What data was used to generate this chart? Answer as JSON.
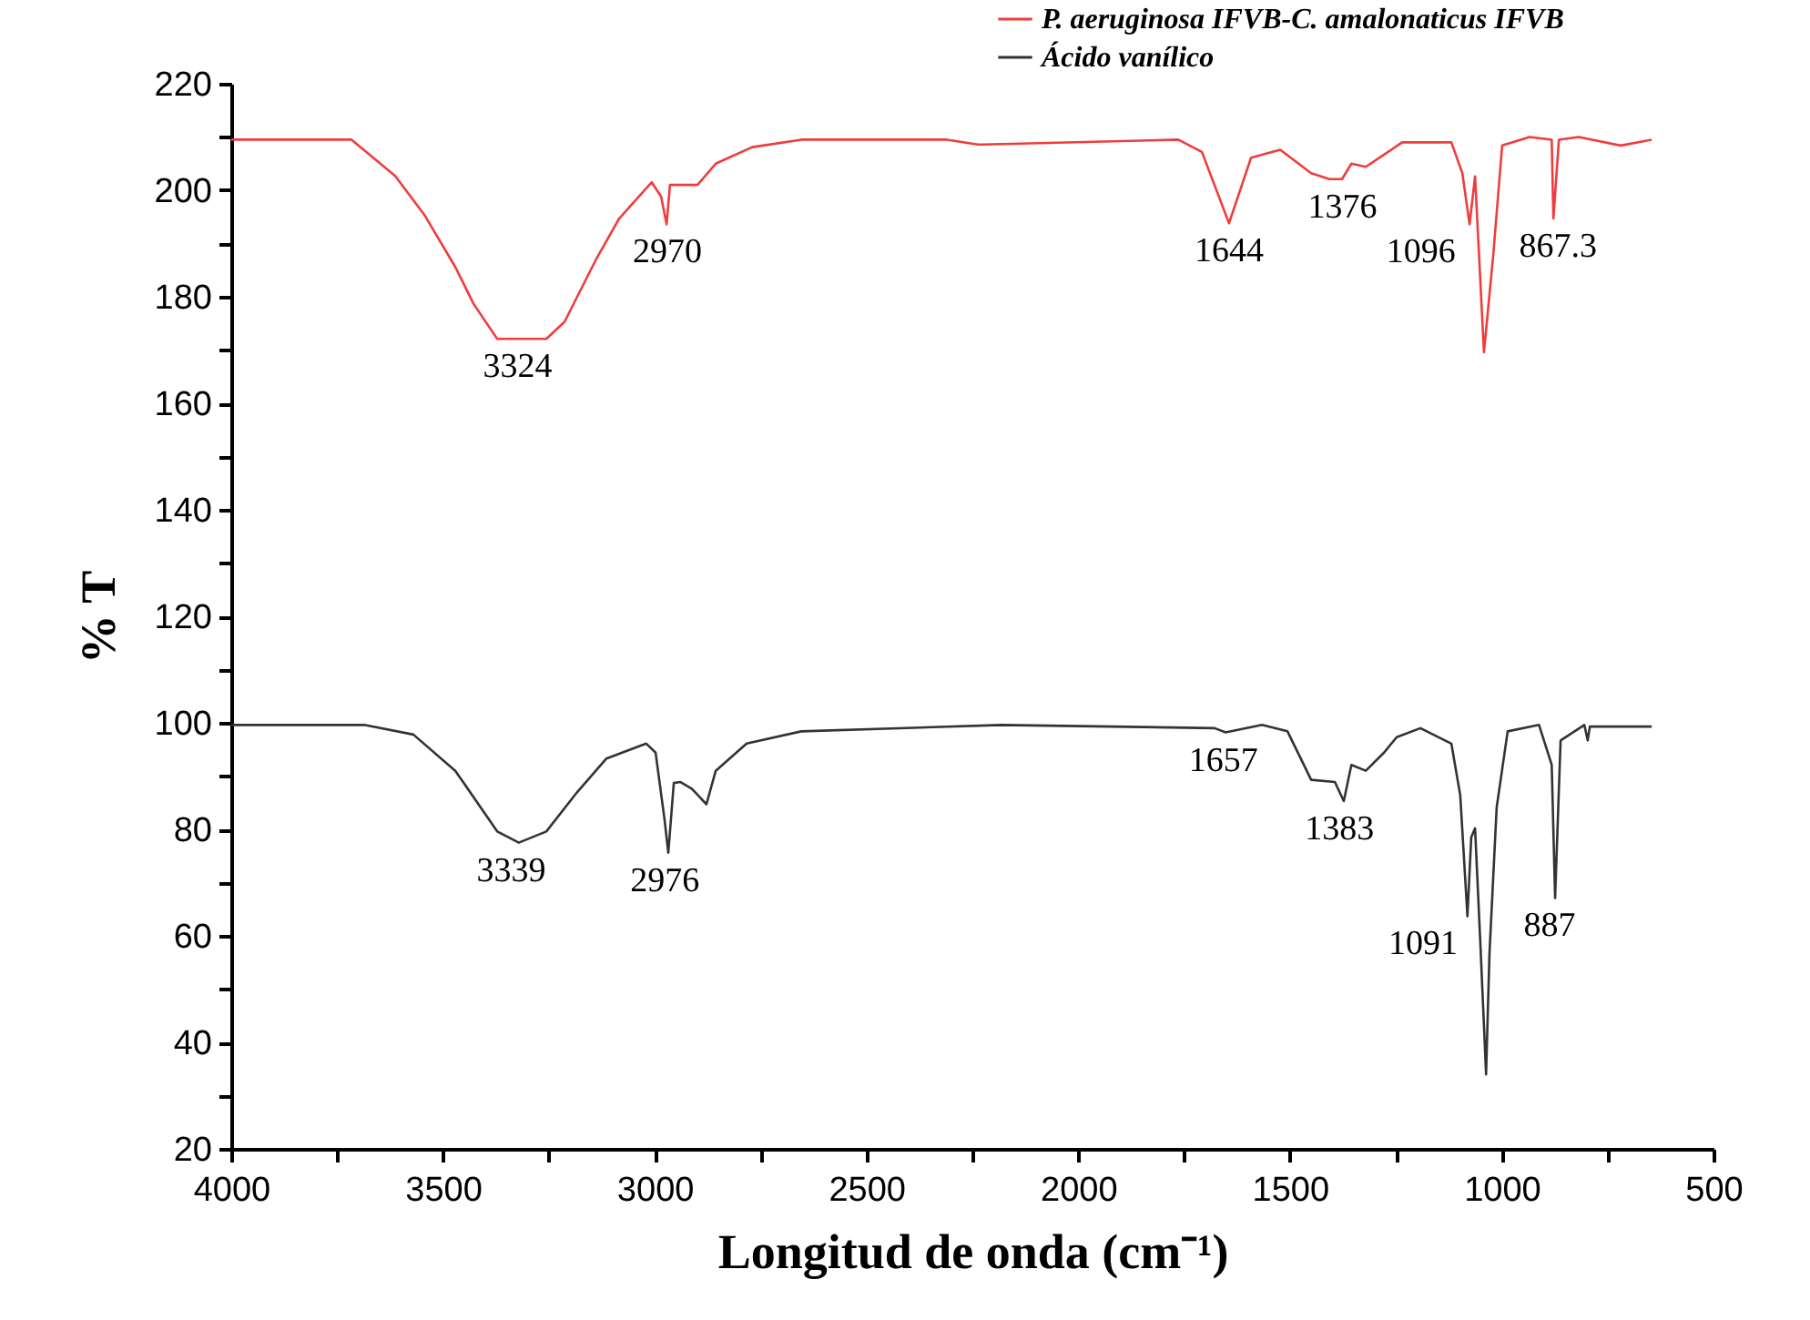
{
  "chart_data": {
    "type": "line",
    "xlabel": "Longitud de onda (cm⁻¹)",
    "ylabel": "% T",
    "xlim": [
      4000,
      500
    ],
    "ylim": [
      20,
      220
    ],
    "xticks": [
      4000,
      {
        "value": 3750,
        "label": null
      },
      3500,
      {
        "value": 3250,
        "label": null
      },
      3000,
      {
        "value": 2750,
        "label": null
      },
      2500,
      {
        "value": 2250,
        "label": null
      },
      2000,
      {
        "value": 1750,
        "label": null
      },
      1500,
      {
        "value": 1250,
        "label": null
      },
      1000,
      {
        "value": 750,
        "label": null
      },
      500
    ],
    "yticks": [
      20,
      {
        "value": 30,
        "label": null
      },
      40,
      {
        "value": 50,
        "label": null
      },
      60,
      {
        "value": 70,
        "label": null
      },
      80,
      {
        "value": 90,
        "label": null
      },
      100,
      {
        "value": 110,
        "label": null
      },
      120,
      {
        "value": 130,
        "label": null
      },
      140,
      {
        "value": 150,
        "label": null
      },
      160,
      {
        "value": 170,
        "label": null
      },
      180,
      {
        "value": 190,
        "label": null
      },
      200,
      {
        "value": 210,
        "label": null
      },
      220
    ],
    "grid": false,
    "legend": "top right",
    "line_style": "solid",
    "series": [
      {
        "name": "P. aeruginosa IFVB-C. amalonaticus IFVB",
        "color": "#f03c3c",
        "x": [
          4000,
          3716,
          3613,
          3544,
          3471,
          3428,
          3372,
          3256,
          3213,
          3140,
          3084,
          3007,
          2985,
          2972,
          2964,
          2899,
          2856,
          2770,
          2654,
          2310,
          2237,
          2224,
          1764,
          1708,
          1644,
          1592,
          1523,
          1450,
          1407,
          1377,
          1355,
          1321,
          1278,
          1235,
          1119,
          1093,
          1076,
          1063,
          1042,
          1020,
          999,
          934,
          882,
          878,
          865,
          818,
          719,
          646
        ],
        "values": [
          209.5,
          209.5,
          202.7,
          195.4,
          185.6,
          178.7,
          172.1,
          172.1,
          175.3,
          186.8,
          194.7,
          201.5,
          198.8,
          193.6,
          201,
          201,
          205,
          208.1,
          209.5,
          209.5,
          208.6,
          208.6,
          209.5,
          207.2,
          193.8,
          206.1,
          207.6,
          203.2,
          202.1,
          202.1,
          205,
          204.4,
          206.7,
          209,
          209,
          203.2,
          193.6,
          202.6,
          169.6,
          187.9,
          208.4,
          210,
          209.5,
          194.7,
          209.5,
          210,
          208.4,
          209.5
        ]
      },
      {
        "name": "Ácido vanílico",
        "color": "#333333",
        "x": [
          4000,
          3686,
          3570,
          3471,
          3372,
          3321,
          3256,
          3183,
          3114,
          3020,
          2998,
          2977,
          2968,
          2955,
          2940,
          2912,
          2878,
          2856,
          2783,
          2654,
          2181,
          1678,
          1652,
          1566,
          1506,
          1450,
          1394,
          1373,
          1355,
          1321,
          1278,
          1248,
          1192,
          1119,
          1098,
          1081,
          1072,
          1063,
          1050,
          1037,
          1029,
          1012,
          986,
          912,
          882,
          874,
          861,
          805,
          797,
          792,
          646
        ],
        "values": [
          99.6,
          99.6,
          97.8,
          91.0,
          79.6,
          77.5,
          79.6,
          87.0,
          93.3,
          96.1,
          94.4,
          81.9,
          75.6,
          88.7,
          88.9,
          87.6,
          84.7,
          91.0,
          96.1,
          98.4,
          99.6,
          99.0,
          98.2,
          99.6,
          98.4,
          89.3,
          88.9,
          85.3,
          92.1,
          91.0,
          94.4,
          97.3,
          99.0,
          96.1,
          86.4,
          63.7,
          78.5,
          80.2,
          57.7,
          34.0,
          56.6,
          84.1,
          98.4,
          99.6,
          92.1,
          67.1,
          96.7,
          99.6,
          96.7,
          99.3,
          99.3
        ]
      }
    ],
    "annotations": [
      {
        "text": "3324",
        "x": 3324,
        "y": 172.1
      },
      {
        "text": "2970",
        "x": 2970,
        "y": 193.6
      },
      {
        "text": "1644",
        "x": 1644,
        "y": 193.8
      },
      {
        "text": "1376",
        "x": 1376,
        "y": 202.1
      },
      {
        "text": "1096",
        "x": 1096,
        "y": 193.6
      },
      {
        "text": "867.3",
        "x": 867.3,
        "y": 194.7
      },
      {
        "text": "3339",
        "x": 3339,
        "y": 77.5
      },
      {
        "text": "2976",
        "x": 2976,
        "y": 75.6
      },
      {
        "text": "1657",
        "x": 1657,
        "y": 98.2
      },
      {
        "text": "1383",
        "x": 1383,
        "y": 85.3
      },
      {
        "text": "1091",
        "x": 1091,
        "y": 63.7
      },
      {
        "text": "887",
        "x": 887,
        "y": 67.1
      }
    ]
  }
}
